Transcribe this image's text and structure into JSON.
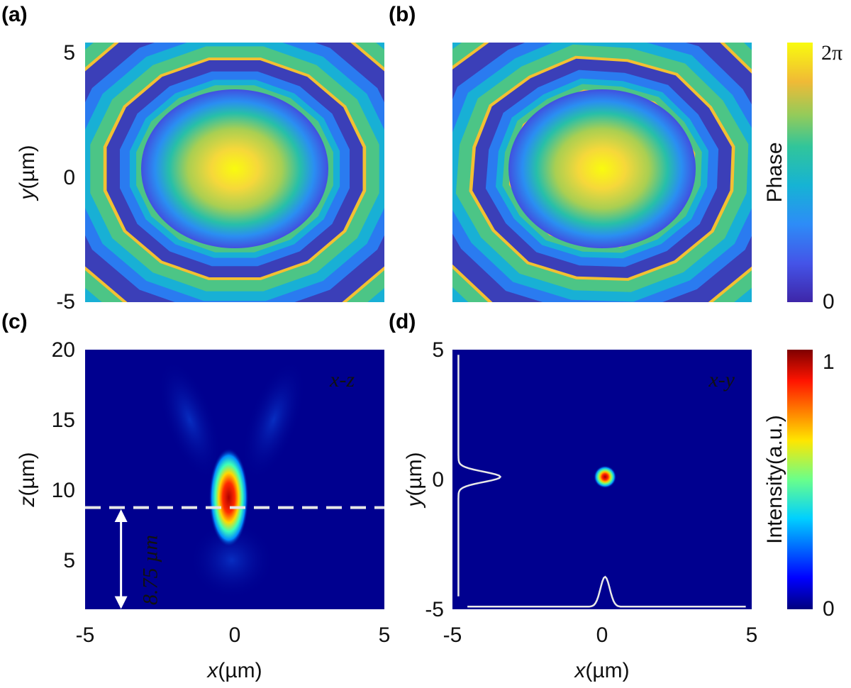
{
  "chart_data": [
    {
      "id": "a",
      "panel": "(a)",
      "type": "heatmap",
      "description_kind": "phase",
      "xlim": [
        -5,
        5
      ],
      "ylim": [
        -5,
        5
      ],
      "yticks": [
        "5",
        "0",
        "-5"
      ],
      "ylabel_italic": "y",
      "ylabel_unit": "(µm)",
      "colormap": "parula"
    },
    {
      "id": "b",
      "panel": "(b)",
      "type": "heatmap",
      "description_kind": "phase",
      "xlim": [
        -5,
        5
      ],
      "ylim": [
        -5,
        5
      ],
      "colormap": "parula",
      "colorbar": {
        "label": "Phase",
        "max_label": "2π",
        "min_label": "0"
      }
    },
    {
      "id": "c",
      "panel": "(c)",
      "type": "heatmap",
      "description_kind": "intensity",
      "xlim": [
        -5,
        5
      ],
      "ylim": [
        1.5,
        20
      ],
      "xticks": [
        "-5",
        "0",
        "5"
      ],
      "yticks": [
        "20",
        "15",
        "10",
        "5"
      ],
      "xlabel_italic": "x",
      "xlabel_unit": "(µm)",
      "ylabel_italic": "z",
      "ylabel_unit": "(µm)",
      "inset_label": "x-z",
      "focal_depth_label": "8.75 µm",
      "focal_z": 8.75,
      "colormap": "jet"
    },
    {
      "id": "d",
      "panel": "(d)",
      "type": "heatmap",
      "description_kind": "intensity",
      "xlim": [
        -5,
        5
      ],
      "ylim": [
        -5,
        5
      ],
      "xticks": [
        "-5",
        "0",
        "5"
      ],
      "yticks": [
        "5",
        "0",
        "-5"
      ],
      "xlabel_italic": "x",
      "xlabel_unit": "(µm)",
      "ylabel_italic": "y",
      "ylabel_unit": "(µm)",
      "inset_label": "x-y",
      "colormap": "jet",
      "colorbar": {
        "label": "Intensity(a.u.)",
        "max_label": "1",
        "min_label": "0"
      }
    }
  ]
}
